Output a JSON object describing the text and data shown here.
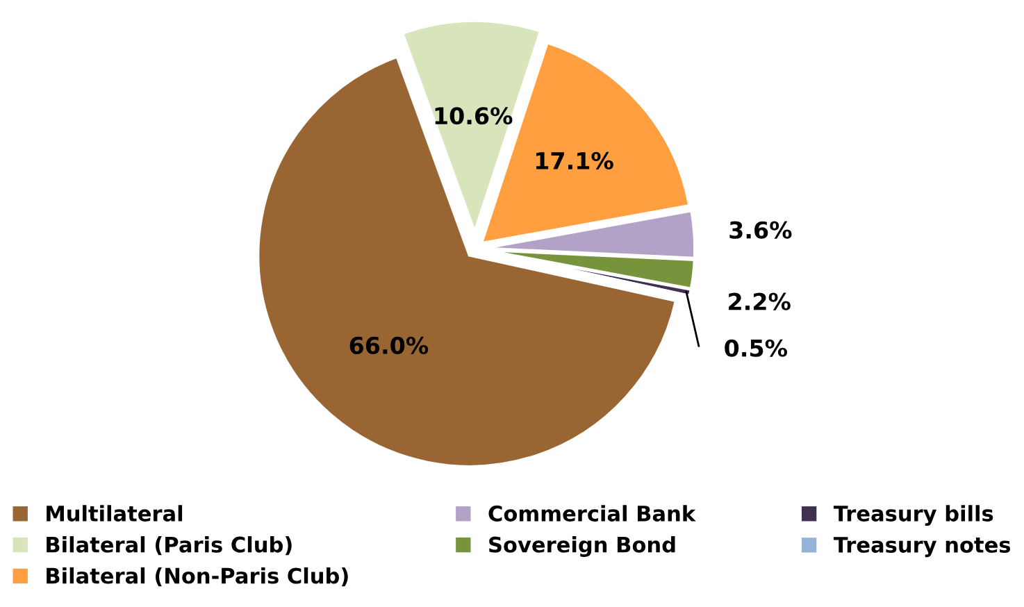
{
  "chart_data": {
    "type": "pie",
    "categories": [
      "Multilateral",
      "Bilateral (Paris Club)",
      "Bilateral (Non-Paris Club)",
      "Commercial Bank",
      "Sovereign Bond",
      "Treasury bills",
      "Treasury notes"
    ],
    "values": [
      66.0,
      10.6,
      17.1,
      3.6,
      2.2,
      0.5,
      0
    ],
    "colors": [
      "#996633",
      "#d8e4bc",
      "#ff9f40",
      "#b3a2c7",
      "#77933c",
      "#403151",
      "#95b3d7"
    ],
    "value_labels": [
      "66.0%",
      "10.6%",
      "17.1%",
      "3.6%",
      "2.2%",
      "0.5%",
      null
    ],
    "legend": "bottom"
  }
}
